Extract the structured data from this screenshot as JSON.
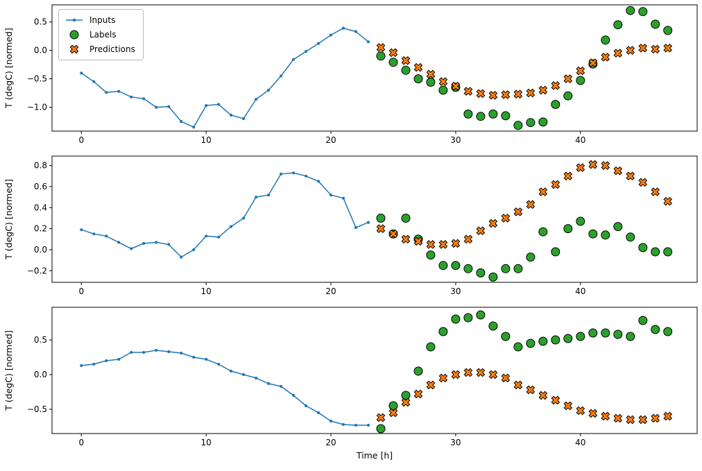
{
  "figure": {
    "xlabel": "Time [h]",
    "ylabel": "T (degC) [normed]"
  },
  "colors": {
    "inputs": "#1f77b4",
    "labels": "#2ca02c",
    "predictions": "#ff7f0e",
    "marker_edge": "#000000",
    "axis": "#000000",
    "background": "#ffffff"
  },
  "legend": {
    "position": "upper left",
    "items": [
      {
        "label": "Inputs"
      },
      {
        "label": "Labels"
      },
      {
        "label": "Predictions"
      }
    ]
  },
  "chart_data": [
    {
      "type": "line",
      "ylabel": "T (degC) [normed]",
      "xticks": [
        0,
        10,
        20,
        30,
        40
      ],
      "yticks": [
        0.5,
        0.0,
        -0.5,
        -1.0
      ],
      "ylim": [
        -1.42,
        0.8
      ],
      "grid": false,
      "series": [
        {
          "name": "Inputs",
          "type": "line",
          "x": [
            0,
            1,
            2,
            3,
            4,
            5,
            6,
            7,
            8,
            9,
            10,
            11,
            12,
            13,
            14,
            15,
            16,
            17,
            18,
            19,
            20,
            21,
            22,
            23
          ],
          "y": [
            -0.4,
            -0.55,
            -0.74,
            -0.72,
            -0.82,
            -0.85,
            -1.0,
            -0.99,
            -1.25,
            -1.35,
            -0.97,
            -0.95,
            -1.14,
            -1.2,
            -0.86,
            -0.7,
            -0.45,
            -0.16,
            -0.02,
            0.12,
            0.27,
            0.39,
            0.33,
            0.15
          ]
        },
        {
          "name": "Labels",
          "type": "scatter-circle",
          "x": [
            24,
            25,
            26,
            27,
            28,
            29,
            30,
            31,
            32,
            33,
            34,
            35,
            36,
            37,
            38,
            39,
            40,
            41,
            42,
            43,
            44,
            45,
            46,
            47
          ],
          "y": [
            -0.1,
            -0.21,
            -0.35,
            -0.5,
            -0.56,
            -0.7,
            -0.65,
            -1.12,
            -1.16,
            -1.12,
            -1.15,
            -1.32,
            -1.27,
            -1.26,
            -0.95,
            -0.8,
            -0.53,
            -0.24,
            0.18,
            0.45,
            0.7,
            0.68,
            0.46,
            0.35
          ]
        },
        {
          "name": "Predictions",
          "type": "scatter-x",
          "x": [
            24,
            25,
            26,
            27,
            28,
            29,
            30,
            31,
            32,
            33,
            34,
            35,
            36,
            37,
            38,
            39,
            40,
            41,
            42,
            43,
            44,
            45,
            46,
            47
          ],
          "y": [
            0.05,
            -0.04,
            -0.18,
            -0.3,
            -0.42,
            -0.55,
            -0.63,
            -0.72,
            -0.76,
            -0.79,
            -0.78,
            -0.77,
            -0.75,
            -0.7,
            -0.62,
            -0.5,
            -0.36,
            -0.22,
            -0.12,
            -0.05,
            0.0,
            0.04,
            0.02,
            0.04
          ]
        }
      ]
    },
    {
      "type": "line",
      "ylabel": "T (degC) [normed]",
      "xticks": [
        0,
        10,
        20,
        30,
        40
      ],
      "yticks": [
        0.8,
        0.6,
        0.4,
        0.2,
        0.0,
        -0.2
      ],
      "ylim": [
        -0.31,
        0.89
      ],
      "grid": false,
      "series": [
        {
          "name": "Inputs",
          "type": "line",
          "x": [
            0,
            1,
            2,
            3,
            4,
            5,
            6,
            7,
            8,
            9,
            10,
            11,
            12,
            13,
            14,
            15,
            16,
            17,
            18,
            19,
            20,
            21,
            22,
            23
          ],
          "y": [
            0.19,
            0.15,
            0.13,
            0.07,
            0.01,
            0.06,
            0.07,
            0.05,
            -0.07,
            0.0,
            0.13,
            0.12,
            0.22,
            0.3,
            0.5,
            0.52,
            0.72,
            0.73,
            0.7,
            0.65,
            0.52,
            0.49,
            0.21,
            0.26
          ]
        },
        {
          "name": "Labels",
          "type": "scatter-circle",
          "x": [
            24,
            25,
            26,
            27,
            28,
            29,
            30,
            31,
            32,
            33,
            34,
            35,
            36,
            37,
            38,
            39,
            40,
            41,
            42,
            43,
            44,
            45,
            46,
            47
          ],
          "y": [
            0.3,
            0.15,
            0.3,
            0.1,
            -0.05,
            -0.15,
            -0.15,
            -0.18,
            -0.22,
            -0.26,
            -0.18,
            -0.18,
            -0.07,
            0.17,
            -0.02,
            0.2,
            0.27,
            0.15,
            0.14,
            0.22,
            0.12,
            0.02,
            -0.02,
            -0.02
          ]
        },
        {
          "name": "Predictions",
          "type": "scatter-x",
          "x": [
            24,
            25,
            26,
            27,
            28,
            29,
            30,
            31,
            32,
            33,
            34,
            35,
            36,
            37,
            38,
            39,
            40,
            41,
            42,
            43,
            44,
            45,
            46,
            47
          ],
          "y": [
            0.2,
            0.15,
            0.1,
            0.08,
            0.05,
            0.05,
            0.06,
            0.1,
            0.18,
            0.25,
            0.3,
            0.36,
            0.43,
            0.55,
            0.62,
            0.7,
            0.78,
            0.81,
            0.8,
            0.75,
            0.7,
            0.64,
            0.55,
            0.46
          ]
        }
      ]
    },
    {
      "type": "line",
      "ylabel": "T (degC) [normed]",
      "xlabel": "Time [h]",
      "xticks": [
        0,
        10,
        20,
        30,
        40
      ],
      "yticks": [
        0.5,
        0.0,
        -0.5
      ],
      "ylim": [
        -0.85,
        0.97
      ],
      "grid": false,
      "series": [
        {
          "name": "Inputs",
          "type": "line",
          "x": [
            0,
            1,
            2,
            3,
            4,
            5,
            6,
            7,
            8,
            9,
            10,
            11,
            12,
            13,
            14,
            15,
            16,
            17,
            18,
            19,
            20,
            21,
            22,
            23
          ],
          "y": [
            0.13,
            0.15,
            0.2,
            0.22,
            0.32,
            0.32,
            0.35,
            0.33,
            0.31,
            0.25,
            0.22,
            0.15,
            0.05,
            0.0,
            -0.05,
            -0.13,
            -0.17,
            -0.3,
            -0.45,
            -0.55,
            -0.67,
            -0.72,
            -0.73,
            -0.73
          ]
        },
        {
          "name": "Labels",
          "type": "scatter-circle",
          "x": [
            24,
            25,
            26,
            27,
            28,
            29,
            30,
            31,
            32,
            33,
            34,
            35,
            36,
            37,
            38,
            39,
            40,
            41,
            42,
            43,
            44,
            45,
            46,
            47
          ],
          "y": [
            -0.78,
            -0.45,
            -0.3,
            0.05,
            0.4,
            0.62,
            0.8,
            0.82,
            0.86,
            0.7,
            0.55,
            0.4,
            0.45,
            0.48,
            0.5,
            0.52,
            0.55,
            0.6,
            0.6,
            0.58,
            0.55,
            0.78,
            0.65,
            0.62
          ]
        },
        {
          "name": "Predictions",
          "type": "scatter-x",
          "x": [
            24,
            25,
            26,
            27,
            28,
            29,
            30,
            31,
            32,
            33,
            34,
            35,
            36,
            37,
            38,
            39,
            40,
            41,
            42,
            43,
            44,
            45,
            46,
            47
          ],
          "y": [
            -0.62,
            -0.55,
            -0.4,
            -0.28,
            -0.15,
            -0.05,
            0.0,
            0.03,
            0.03,
            0.0,
            -0.05,
            -0.15,
            -0.22,
            -0.3,
            -0.37,
            -0.45,
            -0.52,
            -0.56,
            -0.6,
            -0.63,
            -0.65,
            -0.65,
            -0.63,
            -0.6
          ]
        }
      ]
    }
  ]
}
